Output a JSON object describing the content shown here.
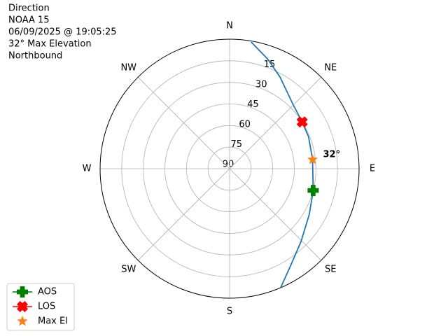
{
  "chart_data": {
    "type": "polar",
    "title_lines": [
      "Direction",
      "NOAA 15",
      "06/09/2025 @ 19:05:25",
      "32° Max Elevation",
      "Northbound"
    ],
    "theta_direction": "clockwise",
    "theta_zero": "N",
    "thetaticks": [
      {
        "value": 0,
        "label": "N"
      },
      {
        "value": 45,
        "label": "NE"
      },
      {
        "value": 90,
        "label": "E"
      },
      {
        "value": 135,
        "label": "SE"
      },
      {
        "value": 180,
        "label": "S"
      },
      {
        "value": 225,
        "label": "SW"
      },
      {
        "value": 270,
        "label": "W"
      },
      {
        "value": 315,
        "label": "NW"
      }
    ],
    "rlim": [
      90,
      0
    ],
    "rticks": [
      15,
      30,
      45,
      60,
      75,
      90
    ],
    "grid": true,
    "track": {
      "color": "#1f77b4",
      "azimuth": [
        9.7,
        19,
        28.8,
        45,
        57.2,
        68,
        83.7,
        104.6,
        119.7,
        135.5,
        148,
        156.8
      ],
      "elevation": [
        0.7,
        9.2,
        17.3,
        27.4,
        30,
        30.8,
        32,
        30,
        26.2,
        19.1,
        10.2,
        0
      ]
    },
    "markers": [
      {
        "name": "AOS",
        "color": "#008000",
        "marker": "plus",
        "azimuth": 104.6,
        "elevation": 30
      },
      {
        "name": "LOS",
        "color": "#ff0000",
        "marker": "x",
        "azimuth": 57.2,
        "elevation": 30
      },
      {
        "name": "Max El",
        "color": "#ff7f0e",
        "marker": "star",
        "azimuth": 83.7,
        "elevation": 32
      }
    ],
    "annotation": "32°",
    "legend": "lower left"
  }
}
